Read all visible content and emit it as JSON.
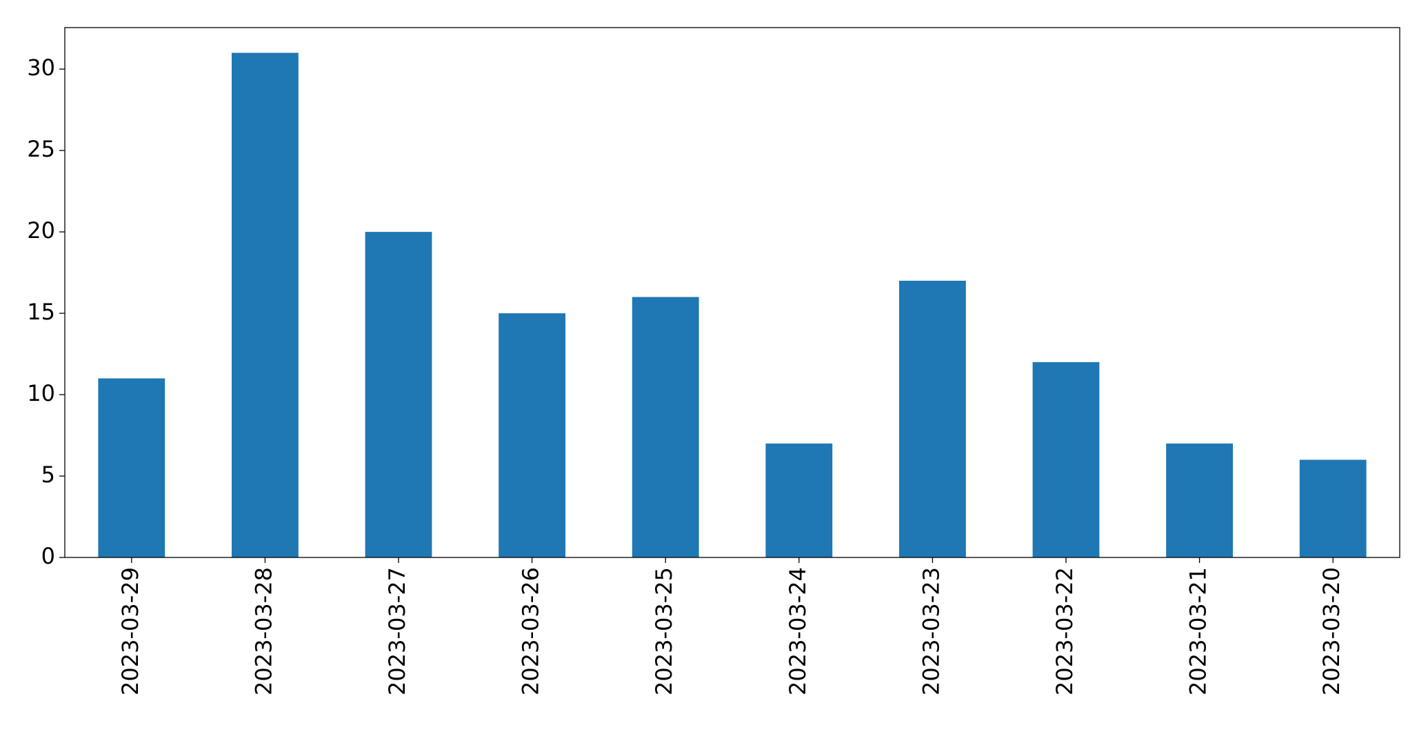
{
  "chart_data": {
    "type": "bar",
    "categories": [
      "2023-03-29",
      "2023-03-28",
      "2023-03-27",
      "2023-03-26",
      "2023-03-25",
      "2023-03-24",
      "2023-03-23",
      "2023-03-22",
      "2023-03-21",
      "2023-03-20"
    ],
    "values": [
      11,
      31,
      20,
      15,
      16,
      7,
      17,
      12,
      7,
      6
    ],
    "color": "#1f77b4",
    "ylim": [
      0,
      32.55
    ],
    "yticks": [
      0,
      5,
      10,
      15,
      20,
      25,
      30
    ],
    "grid": false
  }
}
